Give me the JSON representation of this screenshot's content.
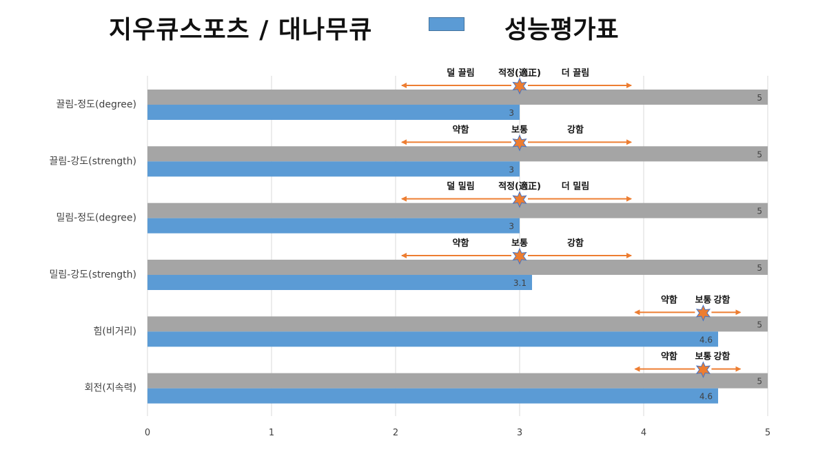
{
  "header": {
    "title": "지우큐스포츠 / 대나무큐",
    "legend_label": "성능평가표"
  },
  "colors": {
    "max_bar": "#a5a5a5",
    "value_bar": "#5b9bd5",
    "arrow": "#ed7d31",
    "star_fill": "#ed7d31",
    "star_stroke": "#4472c4",
    "grid": "#d9d9d9"
  },
  "chart_data": {
    "type": "bar",
    "orientation": "horizontal",
    "categories": [
      "끌림-정도(degree)",
      "끌림-강도(strength)",
      "밀림-정도(degree)",
      "밀림-강도(strength)",
      "힘(비거리)",
      "회전(지속력)"
    ],
    "series": [
      {
        "name": "",
        "values": [
          5,
          5,
          5,
          5,
          5,
          5
        ]
      },
      {
        "name": "성능평가표",
        "values": [
          3,
          3,
          3,
          3.1,
          4.6,
          4.6
        ]
      }
    ],
    "value_labels": [
      [
        "5",
        "5",
        "5",
        "5",
        "5",
        "5"
      ],
      [
        "3",
        "3",
        "3",
        "3.1",
        "4.6",
        "4.6"
      ]
    ],
    "xlim": [
      0,
      5
    ],
    "xticks": [
      "0",
      "1",
      "2",
      "3",
      "4",
      "5"
    ],
    "grid": true,
    "legend": "top",
    "annotations": [
      {
        "left": "덜 끌림",
        "center": "적정(適正)",
        "right": "더 끌림",
        "marker_value": 3,
        "arrow_from": 2.05,
        "arrow_to": 3.9
      },
      {
        "left": "약함",
        "center": "보통",
        "right": "강함",
        "marker_value": 3,
        "arrow_from": 2.05,
        "arrow_to": 3.9
      },
      {
        "left": "덜 밀림",
        "center": "적정(適正)",
        "right": "더 밀림",
        "marker_value": 3,
        "arrow_from": 2.05,
        "arrow_to": 3.9
      },
      {
        "left": "약함",
        "center": "보통",
        "right": "강함",
        "marker_value": 3,
        "arrow_from": 2.05,
        "arrow_to": 3.9
      },
      {
        "left": "약함",
        "center": "보통",
        "right": "강함",
        "marker_value": 4.48,
        "arrow_from": 3.93,
        "arrow_to": 4.78
      },
      {
        "left": "약함",
        "center": "보통",
        "right": "강함",
        "marker_value": 4.48,
        "arrow_from": 3.93,
        "arrow_to": 4.78
      }
    ]
  }
}
